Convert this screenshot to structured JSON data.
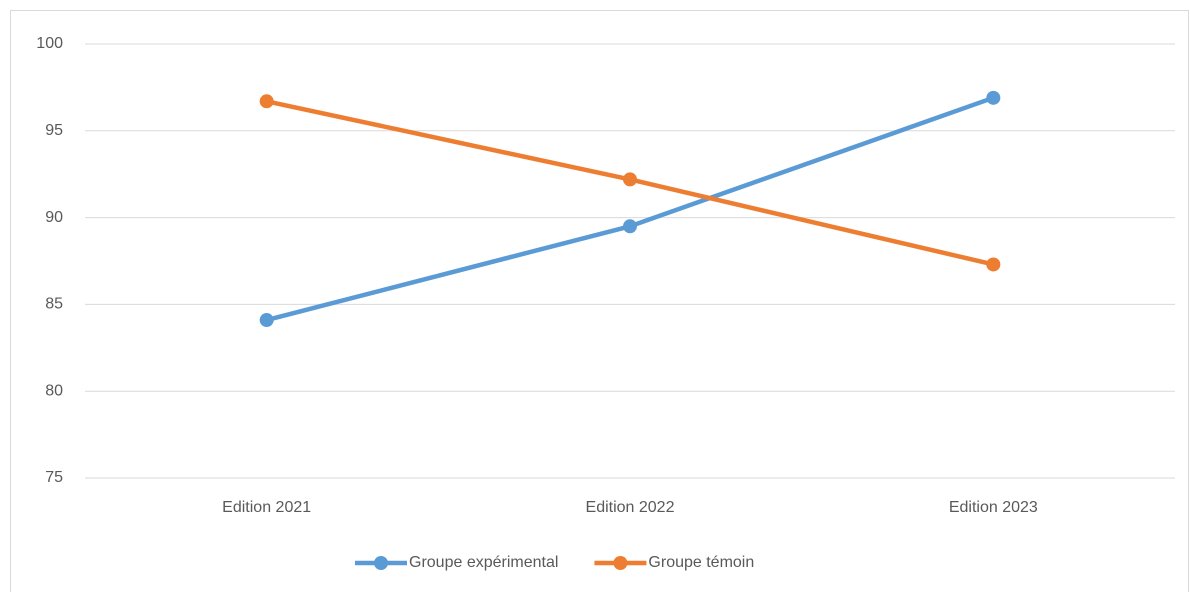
{
  "chart_data": {
    "type": "line",
    "categories": [
      "Edition 2021",
      "Edition 2022",
      "Edition 2023"
    ],
    "series": [
      {
        "name": "Groupe expérimental",
        "color": "#5b9bd5",
        "values": [
          84.1,
          89.5,
          96.9
        ]
      },
      {
        "name": "Groupe témoin",
        "color": "#ed7d31",
        "values": [
          96.7,
          92.2,
          87.3
        ]
      }
    ],
    "ylim": [
      75,
      100
    ],
    "yticks": [
      75,
      80,
      85,
      90,
      95,
      100
    ],
    "grid": true,
    "legend": "bottom"
  }
}
